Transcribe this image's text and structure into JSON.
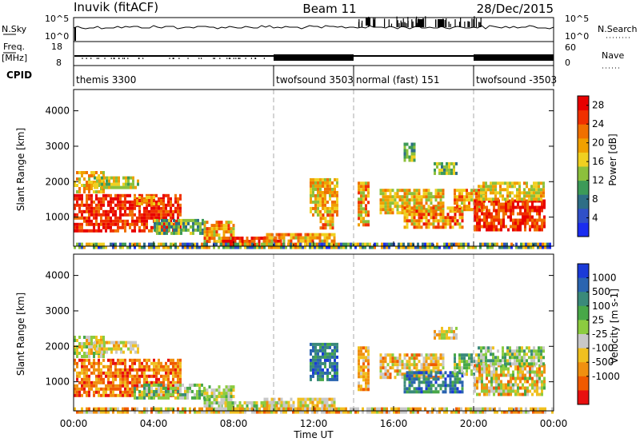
{
  "header": {
    "station": "Inuvik (fitACF)",
    "beam": "Beam 11",
    "date": "28/Dec/2015"
  },
  "top_panels": {
    "nsky": {
      "label": "N.Sky",
      "tick_top": "10^5",
      "tick_bottom": "10^0"
    },
    "nsearch": {
      "label": "N.Search",
      "tick_top": "10^5",
      "tick_bottom": "10^0"
    },
    "freq": {
      "label_line1": "Freq.",
      "label_line2": "[MHz]",
      "tick_top": "18",
      "tick_bottom": "8"
    },
    "nave": {
      "label": "Nave",
      "tick_top": "60",
      "tick_bottom": "0"
    },
    "cpid": {
      "label": "CPID",
      "segments": [
        {
          "label": "themis 3300",
          "start_hour": 0,
          "end_hour": 10
        },
        {
          "label": "twofsound 3503",
          "start_hour": 10,
          "end_hour": 14
        },
        {
          "label": "normal (fast) 151",
          "start_hour": 14,
          "end_hour": 20
        },
        {
          "label": "twofsound -3503",
          "start_hour": 20,
          "end_hour": 24
        }
      ]
    }
  },
  "colors": {
    "power": [
      "#1a2cf0",
      "#3050c8",
      "#2e6e86",
      "#3c9a58",
      "#8cc03c",
      "#f0d020",
      "#f0a000",
      "#f07000",
      "#f03000",
      "#e80000"
    ],
    "velocity": [
      "#1a3ad8",
      "#2a64b0",
      "#3a8a7a",
      "#48a848",
      "#8ccc40",
      "#c8c8c8",
      "#f0c020",
      "#f09010",
      "#f05a00",
      "#e81010"
    ]
  },
  "chart_data": [
    {
      "type": "heatmap",
      "name": "power",
      "x": {
        "label": "",
        "ticks": [
          "00:00",
          "04:00",
          "08:00",
          "12:00",
          "16:00",
          "20:00",
          "00:00"
        ],
        "range_hours": [
          0,
          24
        ]
      },
      "y": {
        "label": "Slant Range [km]",
        "ticks": [
          "1000",
          "2000",
          "3000",
          "4000"
        ],
        "range": [
          180,
          4600
        ]
      },
      "colorbar": {
        "label": "Power [dB]",
        "ticks": [
          "4",
          "8",
          "12",
          "16",
          "20",
          "24",
          "28"
        ],
        "range": [
          0,
          30
        ]
      },
      "regions": [
        {
          "t0": 0.0,
          "t1": 5.3,
          "r0": 600,
          "r1": 1650,
          "v0": 22,
          "v1": 30
        },
        {
          "t0": 0.0,
          "t1": 1.5,
          "r0": 1700,
          "r1": 2300,
          "v0": 14,
          "v1": 24
        },
        {
          "t0": 1.0,
          "t1": 3.2,
          "r0": 1850,
          "r1": 2150,
          "v0": 10,
          "v1": 20
        },
        {
          "t0": 3.0,
          "t1": 4.5,
          "r0": 1350,
          "r1": 1600,
          "v0": 16,
          "v1": 26
        },
        {
          "t0": 4.0,
          "t1": 6.5,
          "r0": 550,
          "r1": 950,
          "v0": 6,
          "v1": 16
        },
        {
          "t0": 6.5,
          "t1": 8.0,
          "r0": 350,
          "r1": 900,
          "v0": 12,
          "v1": 26
        },
        {
          "t0": 7.3,
          "t1": 10.5,
          "r0": 200,
          "r1": 450,
          "v0": 22,
          "v1": 30
        },
        {
          "t0": 9.5,
          "t1": 13.0,
          "r0": 200,
          "r1": 550,
          "v0": 14,
          "v1": 26
        },
        {
          "t0": 11.8,
          "t1": 13.2,
          "r0": 1100,
          "r1": 2100,
          "v0": 12,
          "v1": 24
        },
        {
          "t0": 12.3,
          "t1": 13.0,
          "r0": 700,
          "r1": 1100,
          "v0": 14,
          "v1": 26
        },
        {
          "t0": 14.2,
          "t1": 14.8,
          "r0": 800,
          "r1": 2000,
          "v0": 12,
          "v1": 26
        },
        {
          "t0": 15.3,
          "t1": 18.5,
          "r0": 1100,
          "r1": 1800,
          "v0": 12,
          "v1": 24
        },
        {
          "t0": 16.5,
          "t1": 19.5,
          "r0": 700,
          "r1": 1300,
          "v0": 14,
          "v1": 28
        },
        {
          "t0": 19.0,
          "t1": 20.5,
          "r0": 1200,
          "r1": 1800,
          "v0": 14,
          "v1": 26
        },
        {
          "t0": 20.0,
          "t1": 23.6,
          "r0": 600,
          "r1": 1500,
          "v0": 22,
          "v1": 30
        },
        {
          "t0": 20.2,
          "t1": 23.5,
          "r0": 1500,
          "r1": 2000,
          "v0": 12,
          "v1": 22
        },
        {
          "t0": 18.0,
          "t1": 19.2,
          "r0": 2200,
          "r1": 2550,
          "v0": 8,
          "v1": 18
        },
        {
          "t0": 16.5,
          "t1": 17.0,
          "r0": 2600,
          "r1": 3100,
          "v0": 6,
          "v1": 16
        },
        {
          "t0": 0.0,
          "t1": 24.0,
          "r0": 180,
          "r1": 280,
          "v0": 2,
          "v1": 22
        }
      ]
    },
    {
      "type": "heatmap",
      "name": "velocity",
      "x": {
        "label": "Time UT",
        "ticks": [
          "00:00",
          "04:00",
          "08:00",
          "12:00",
          "16:00",
          "20:00",
          "00:00"
        ],
        "range_hours": [
          0,
          24
        ]
      },
      "y": {
        "label": "Slant Range [km]",
        "ticks": [
          "1000",
          "2000",
          "3000",
          "4000"
        ],
        "range": [
          180,
          4600
        ]
      },
      "colorbar": {
        "label": "Velocity [m s-1]",
        "ticks": [
          "1000",
          "500",
          "100",
          "25",
          "-25",
          "-100",
          "-500",
          "-1000"
        ]
      },
      "regions": [
        {
          "t0": 0.0,
          "t1": 5.3,
          "r0": 600,
          "r1": 1650,
          "v0": 6,
          "v1": 9
        },
        {
          "t0": 0.0,
          "t1": 1.5,
          "r0": 1700,
          "r1": 2300,
          "v0": 3,
          "v1": 7
        },
        {
          "t0": 1.0,
          "t1": 3.2,
          "r0": 1850,
          "r1": 2150,
          "v0": 4,
          "v1": 7
        },
        {
          "t0": 3.0,
          "t1": 6.5,
          "r0": 550,
          "r1": 950,
          "v0": 2,
          "v1": 6
        },
        {
          "t0": 6.5,
          "t1": 8.0,
          "r0": 350,
          "r1": 900,
          "v0": 3,
          "v1": 6
        },
        {
          "t0": 7.3,
          "t1": 10.5,
          "r0": 200,
          "r1": 450,
          "v0": 3,
          "v1": 6
        },
        {
          "t0": 9.5,
          "t1": 13.0,
          "r0": 200,
          "r1": 550,
          "v0": 4,
          "v1": 7
        },
        {
          "t0": 11.8,
          "t1": 13.2,
          "r0": 1100,
          "r1": 2100,
          "v0": 0,
          "v1": 3
        },
        {
          "t0": 14.2,
          "t1": 14.8,
          "r0": 800,
          "r1": 2000,
          "v0": 5,
          "v1": 8
        },
        {
          "t0": 15.3,
          "t1": 18.5,
          "r0": 1100,
          "r1": 1800,
          "v0": 4,
          "v1": 8
        },
        {
          "t0": 16.5,
          "t1": 19.5,
          "r0": 700,
          "r1": 1300,
          "v0": 0,
          "v1": 3
        },
        {
          "t0": 19.0,
          "t1": 20.5,
          "r0": 1200,
          "r1": 1800,
          "v0": 2,
          "v1": 6
        },
        {
          "t0": 20.0,
          "t1": 23.6,
          "r0": 600,
          "r1": 1500,
          "v0": 3,
          "v1": 8
        },
        {
          "t0": 20.2,
          "t1": 23.5,
          "r0": 1500,
          "r1": 2000,
          "v0": 2,
          "v1": 6
        },
        {
          "t0": 18.0,
          "t1": 19.2,
          "r0": 2200,
          "r1": 2550,
          "v0": 4,
          "v1": 7
        },
        {
          "t0": 0.0,
          "t1": 24.0,
          "r0": 180,
          "r1": 280,
          "v0": 4,
          "v1": 8
        }
      ]
    }
  ]
}
